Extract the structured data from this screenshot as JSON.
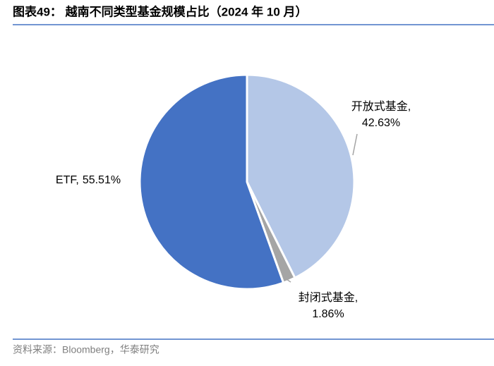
{
  "chart_data": {
    "type": "pie",
    "title": "图表49： 越南不同类型基金规模占比（2024 年 10 月）",
    "source": "资料来源：Bloomberg，华泰研究",
    "categories": [
      "开放式基金,",
      "封闭式基金,",
      "ETF,"
    ],
    "values": [
      42.63,
      1.86,
      55.51
    ],
    "value_labels": [
      "42.63%",
      "1.86%",
      "55.51%"
    ],
    "colors": [
      "#b4c7e7",
      "#a5a5a5",
      "#4472c4"
    ]
  }
}
